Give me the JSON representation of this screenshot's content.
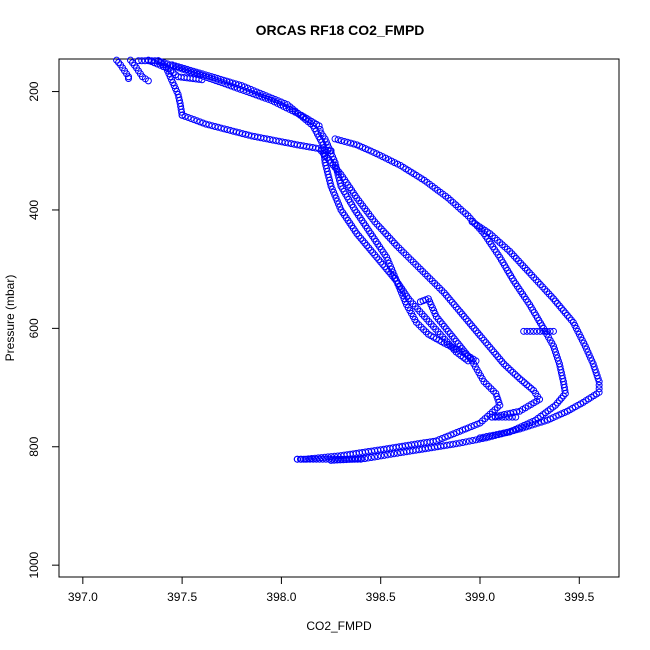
{
  "chart_data": {
    "type": "scatter",
    "title": "ORCAS RF18 CO2_FMPD",
    "xlabel": "CO2_FMPD",
    "ylabel": "Pressure (mbar)",
    "xlim": [
      396.88,
      399.7
    ],
    "ylim": [
      1020,
      145
    ],
    "y_reversed": true,
    "grid": false,
    "marker": "open-circle",
    "color": "#0000ff",
    "xticks": [
      397.0,
      397.5,
      398.0,
      398.5,
      399.0,
      399.5
    ],
    "xtick_labels": [
      "397.0",
      "397.5",
      "398.0",
      "398.5",
      "399.0",
      "399.5"
    ],
    "yticks": [
      200,
      400,
      600,
      800,
      1000
    ],
    "ytick_labels": [
      "200",
      "400",
      "600",
      "800",
      "1000"
    ],
    "series": [
      {
        "values": [
          [
            397.17,
            147
          ],
          [
            397.19,
            155
          ],
          [
            397.21,
            165
          ],
          [
            397.23,
            175
          ],
          [
            397.23,
            178
          ]
        ]
      },
      {
        "values": [
          [
            397.24,
            147
          ],
          [
            397.27,
            160
          ],
          [
            397.3,
            175
          ],
          [
            397.33,
            182
          ]
        ]
      },
      {
        "values": [
          [
            397.28,
            148
          ],
          [
            397.38,
            148
          ]
        ]
      },
      {
        "values": [
          [
            397.38,
            148
          ],
          [
            397.48,
            175
          ],
          [
            397.6,
            180
          ]
        ]
      },
      {
        "values": [
          [
            397.33,
            147
          ],
          [
            397.42,
            160
          ],
          [
            397.44,
            175
          ],
          [
            397.46,
            190
          ],
          [
            397.48,
            205
          ],
          [
            397.49,
            220
          ],
          [
            397.5,
            240
          ]
        ]
      },
      {
        "values": [
          [
            397.5,
            240
          ],
          [
            397.62,
            255
          ],
          [
            397.85,
            275
          ],
          [
            398.08,
            290
          ],
          [
            398.25,
            300
          ]
        ]
      },
      {
        "values": [
          [
            397.38,
            148
          ],
          [
            397.7,
            185
          ],
          [
            397.95,
            215
          ],
          [
            398.1,
            240
          ],
          [
            398.19,
            258
          ],
          [
            398.2,
            270
          ],
          [
            398.22,
            280
          ],
          [
            398.27,
            320
          ],
          [
            398.3,
            360
          ],
          [
            398.37,
            400
          ],
          [
            398.45,
            440
          ],
          [
            398.53,
            480
          ],
          [
            398.58,
            520
          ],
          [
            398.63,
            560
          ],
          [
            398.68,
            590
          ],
          [
            398.74,
            610
          ],
          [
            398.82,
            625
          ],
          [
            398.91,
            640
          ],
          [
            398.98,
            655
          ]
        ]
      },
      {
        "values": [
          [
            397.45,
            155
          ],
          [
            397.8,
            190
          ],
          [
            398.03,
            222
          ],
          [
            398.16,
            258
          ],
          [
            398.21,
            290
          ],
          [
            398.22,
            320
          ],
          [
            398.25,
            360
          ],
          [
            398.3,
            400
          ],
          [
            398.38,
            440
          ],
          [
            398.48,
            480
          ],
          [
            398.58,
            520
          ],
          [
            398.64,
            550
          ],
          [
            398.72,
            580
          ],
          [
            398.8,
            610
          ],
          [
            398.88,
            640
          ],
          [
            398.94,
            655
          ]
        ]
      },
      {
        "values": [
          [
            398.7,
            555
          ],
          [
            398.74,
            550
          ],
          [
            398.78,
            580
          ],
          [
            398.84,
            605
          ],
          [
            398.9,
            630
          ],
          [
            398.96,
            655
          ],
          [
            399.02,
            690
          ],
          [
            399.08,
            710
          ],
          [
            399.1,
            730
          ],
          [
            399.0,
            760
          ],
          [
            398.78,
            790
          ],
          [
            398.5,
            805
          ],
          [
            398.3,
            815
          ],
          [
            398.12,
            821
          ],
          [
            398.08,
            821
          ]
        ]
      },
      {
        "values": [
          [
            398.08,
            821
          ],
          [
            398.4,
            821
          ]
        ]
      },
      {
        "values": [
          [
            398.2,
            300
          ],
          [
            398.3,
            340
          ],
          [
            398.38,
            380
          ],
          [
            398.47,
            420
          ],
          [
            398.58,
            460
          ],
          [
            398.7,
            500
          ],
          [
            398.82,
            540
          ],
          [
            398.92,
            580
          ],
          [
            399.02,
            620
          ],
          [
            399.12,
            660
          ],
          [
            399.2,
            685
          ],
          [
            399.27,
            705
          ],
          [
            399.3,
            720
          ],
          [
            399.2,
            740
          ],
          [
            399.06,
            750
          ]
        ]
      },
      {
        "values": [
          [
            399.06,
            750
          ],
          [
            399.18,
            750
          ]
        ]
      },
      {
        "values": [
          [
            398.27,
            280
          ],
          [
            398.38,
            290
          ],
          [
            398.48,
            305
          ],
          [
            398.6,
            325
          ],
          [
            398.72,
            350
          ],
          [
            398.84,
            380
          ],
          [
            398.94,
            410
          ],
          [
            399.02,
            440
          ],
          [
            399.1,
            480
          ],
          [
            399.17,
            520
          ],
          [
            399.25,
            560
          ],
          [
            399.32,
            600
          ],
          [
            399.37,
            630
          ],
          [
            399.4,
            660
          ],
          [
            399.42,
            690
          ],
          [
            399.43,
            710
          ],
          [
            399.38,
            730
          ],
          [
            399.28,
            755
          ],
          [
            399.15,
            775
          ],
          [
            399.0,
            785
          ]
        ]
      },
      {
        "values": [
          [
            399.22,
            605
          ],
          [
            399.37,
            605
          ]
        ]
      },
      {
        "values": [
          [
            398.96,
            420
          ],
          [
            399.05,
            440
          ],
          [
            399.15,
            470
          ],
          [
            399.26,
            510
          ],
          [
            399.37,
            550
          ],
          [
            399.47,
            590
          ],
          [
            399.53,
            630
          ],
          [
            399.57,
            660
          ],
          [
            399.6,
            690
          ],
          [
            399.6,
            708
          ],
          [
            399.52,
            725
          ],
          [
            399.44,
            740
          ],
          [
            399.34,
            755
          ],
          [
            399.2,
            770
          ],
          [
            399.03,
            785
          ],
          [
            398.88,
            795
          ],
          [
            398.6,
            810
          ],
          [
            398.42,
            820
          ],
          [
            398.25,
            823
          ]
        ]
      }
    ]
  }
}
